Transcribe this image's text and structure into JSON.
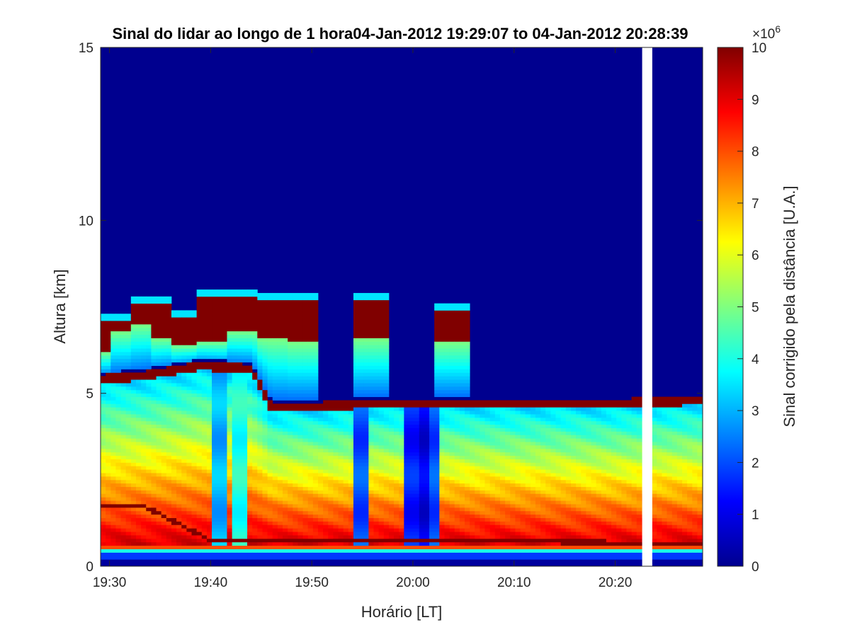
{
  "chart_data": {
    "type": "heatmap",
    "title": "Sinal do lidar ao longo de 1 hora04-Jan-2012 19:29:07 to 04-Jan-2012 20:28:39",
    "xlabel": "Horário [LT]",
    "ylabel": "Altura [km]",
    "colorbar_label": "Sinal corrigido pela distância [U.A.]",
    "colorbar_exponent": "×10^6",
    "colorbar_exponent_base": "×10",
    "colorbar_exponent_power": "6",
    "x_ticks": [
      "19:30",
      "19:40",
      "19:50",
      "20:00",
      "20:10",
      "20:20"
    ],
    "y_ticks": [
      "0",
      "5",
      "10",
      "15"
    ],
    "colorbar_ticks": [
      "0",
      "1",
      "2",
      "3",
      "4",
      "5",
      "6",
      "7",
      "8",
      "9",
      "10"
    ],
    "xlim": [
      "19:29:07",
      "20:28:39"
    ],
    "ylim": [
      0,
      15
    ],
    "clim": [
      0,
      10
    ],
    "colormap": "jet",
    "grid": false,
    "colorbar_position": "right",
    "data_gap": {
      "start": "20:22:40",
      "end": "20:23:40"
    },
    "boundary_layer_top_km": [
      {
        "time": "19:29",
        "km": 1.7
      },
      {
        "time": "19:30",
        "km": 1.7
      },
      {
        "time": "19:31",
        "km": 1.7
      },
      {
        "time": "19:32",
        "km": 1.7
      },
      {
        "time": "19:33",
        "km": 1.7
      },
      {
        "time": "19:34",
        "km": 1.6
      },
      {
        "time": "19:40",
        "km": 0.7
      },
      {
        "time": "19:48",
        "km": 0.7
      },
      {
        "time": "20:00",
        "km": 0.7
      },
      {
        "time": "20:06",
        "km": 0.7
      },
      {
        "time": "20:28",
        "km": 0.6
      }
    ],
    "aerosol_layer_top_km": [
      {
        "time": "19:29",
        "km": 5.4
      },
      {
        "time": "19:33",
        "km": 5.5
      },
      {
        "time": "19:39",
        "km": 5.8
      },
      {
        "time": "19:44",
        "km": 5.7
      },
      {
        "time": "19:46",
        "km": 4.6
      },
      {
        "time": "19:50",
        "km": 4.6
      },
      {
        "time": "19:55",
        "km": 4.7
      },
      {
        "time": "20:00",
        "km": 4.7
      },
      {
        "time": "20:10",
        "km": 4.7
      },
      {
        "time": "20:20",
        "km": 4.7
      },
      {
        "time": "20:28",
        "km": 4.8
      }
    ],
    "cloud_layer_km": [
      {
        "time": "19:29",
        "base": 6.2,
        "top": 7.3
      },
      {
        "time": "19:31",
        "base": 6.8,
        "top": 7.3
      },
      {
        "time": "19:33",
        "base": 7.0,
        "top": 7.8
      },
      {
        "time": "19:35",
        "base": 6.6,
        "top": 7.8
      },
      {
        "time": "19:37",
        "base": 6.4,
        "top": 7.4
      },
      {
        "time": "19:40",
        "base": 6.5,
        "top": 8.0
      },
      {
        "time": "19:43",
        "base": 6.8,
        "top": 8.0
      },
      {
        "time": "19:46",
        "base": 6.6,
        "top": 7.9
      },
      {
        "time": "19:49",
        "base": 6.5,
        "top": 7.9
      },
      {
        "time": "19:56",
        "base": 6.6,
        "top": 7.9
      },
      {
        "time": "20:04",
        "base": 6.5,
        "top": 7.6
      }
    ],
    "clear_columns": [
      {
        "time": "19:41",
        "note_value": 3
      },
      {
        "time": "19:43",
        "note_value": 4
      },
      {
        "time": "19:55",
        "note_value": 2
      },
      {
        "time": "20:00",
        "note_value": 1.5
      },
      {
        "time": "20:01",
        "note_value": 1
      },
      {
        "time": "20:02",
        "note_value": 2
      }
    ]
  }
}
